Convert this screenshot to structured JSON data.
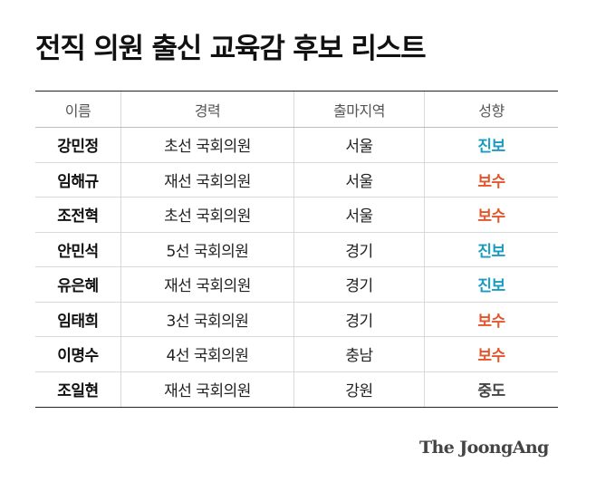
{
  "title": "전직 의원 출신 교육감 후보 리스트",
  "table": {
    "headers": [
      "이름",
      "경력",
      "출마지역",
      "성향"
    ],
    "rows": [
      {
        "name": "강민정",
        "career": "초선 국회의원",
        "region": "서울",
        "orientation": "진보",
        "color": "#1a9bc4"
      },
      {
        "name": "임해규",
        "career": "재선 국회의원",
        "region": "서울",
        "orientation": "보수",
        "color": "#e5542b"
      },
      {
        "name": "조전혁",
        "career": "초선 국회의원",
        "region": "서울",
        "orientation": "보수",
        "color": "#e5542b"
      },
      {
        "name": "안민석",
        "career": "5선 국회의원",
        "region": "경기",
        "orientation": "진보",
        "color": "#1a9bc4"
      },
      {
        "name": "유은혜",
        "career": "재선 국회의원",
        "region": "경기",
        "orientation": "진보",
        "color": "#1a9bc4"
      },
      {
        "name": "임태희",
        "career": "3선 국회의원",
        "region": "경기",
        "orientation": "보수",
        "color": "#e5542b"
      },
      {
        "name": "이명수",
        "career": "4선 국회의원",
        "region": "충남",
        "orientation": "보수",
        "color": "#e5542b"
      },
      {
        "name": "조일현",
        "career": "재선 국회의원",
        "region": "강원",
        "orientation": "중도",
        "color": "#444444"
      }
    ]
  },
  "logo": "The JoongAng"
}
